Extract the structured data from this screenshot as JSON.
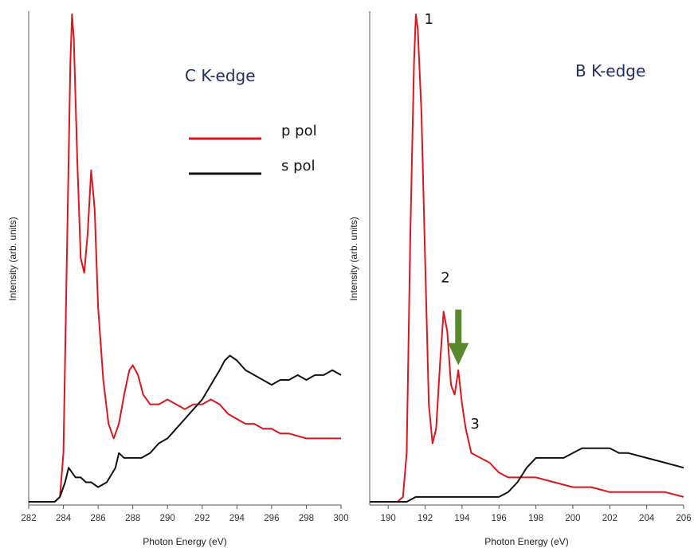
{
  "colors": {
    "p_pol": "#e0141c",
    "s_pol": "#111111",
    "arrow": "#5b8a2e",
    "title": "#1f2f66"
  },
  "chart_data": [
    {
      "type": "line",
      "title": "C K-edge",
      "xlabel": "Photon Energy (eV)",
      "ylabel": "Intensity (arb. units)",
      "xlim": [
        282,
        300
      ],
      "ylim": [
        0,
        1
      ],
      "x_ticks": [
        "282",
        "284",
        "286",
        "288",
        "290",
        "292",
        "294",
        "296",
        "298",
        "300"
      ],
      "legend": [
        "p pol",
        "s pol"
      ],
      "legend_placement": "upper-right",
      "grid": false,
      "series": [
        {
          "name": "p pol",
          "color": "#e0141c",
          "points": [
            [
              282,
              0.0
            ],
            [
              283.5,
              0.0
            ],
            [
              283.8,
              0.01
            ],
            [
              284.0,
              0.1
            ],
            [
              284.2,
              0.5
            ],
            [
              284.4,
              0.9
            ],
            [
              284.5,
              1.0
            ],
            [
              284.6,
              0.95
            ],
            [
              284.8,
              0.7
            ],
            [
              285.0,
              0.5
            ],
            [
              285.2,
              0.47
            ],
            [
              285.4,
              0.55
            ],
            [
              285.6,
              0.68
            ],
            [
              285.8,
              0.6
            ],
            [
              286.0,
              0.4
            ],
            [
              286.3,
              0.25
            ],
            [
              286.6,
              0.16
            ],
            [
              286.9,
              0.13
            ],
            [
              287.2,
              0.16
            ],
            [
              287.5,
              0.22
            ],
            [
              287.8,
              0.27
            ],
            [
              288.0,
              0.28
            ],
            [
              288.3,
              0.26
            ],
            [
              288.6,
              0.22
            ],
            [
              289.0,
              0.2
            ],
            [
              289.5,
              0.2
            ],
            [
              290.0,
              0.21
            ],
            [
              290.5,
              0.2
            ],
            [
              291.0,
              0.19
            ],
            [
              291.5,
              0.2
            ],
            [
              292.0,
              0.2
            ],
            [
              292.5,
              0.21
            ],
            [
              293.0,
              0.2
            ],
            [
              293.5,
              0.18
            ],
            [
              294.0,
              0.17
            ],
            [
              294.5,
              0.16
            ],
            [
              295.0,
              0.16
            ],
            [
              295.5,
              0.15
            ],
            [
              296.0,
              0.15
            ],
            [
              296.5,
              0.14
            ],
            [
              297.0,
              0.14
            ],
            [
              298.0,
              0.13
            ],
            [
              299.0,
              0.13
            ],
            [
              300.0,
              0.13
            ]
          ]
        },
        {
          "name": "s pol",
          "color": "#111111",
          "points": [
            [
              282,
              0.0
            ],
            [
              283.5,
              0.0
            ],
            [
              283.8,
              0.01
            ],
            [
              284.1,
              0.04
            ],
            [
              284.3,
              0.07
            ],
            [
              284.5,
              0.06
            ],
            [
              284.7,
              0.05
            ],
            [
              285.0,
              0.05
            ],
            [
              285.3,
              0.04
            ],
            [
              285.6,
              0.04
            ],
            [
              286.0,
              0.03
            ],
            [
              286.5,
              0.04
            ],
            [
              287.0,
              0.07
            ],
            [
              287.2,
              0.1
            ],
            [
              287.5,
              0.09
            ],
            [
              288.0,
              0.09
            ],
            [
              288.5,
              0.09
            ],
            [
              289.0,
              0.1
            ],
            [
              289.5,
              0.12
            ],
            [
              290.0,
              0.13
            ],
            [
              290.5,
              0.15
            ],
            [
              291.0,
              0.17
            ],
            [
              291.5,
              0.19
            ],
            [
              292.0,
              0.21
            ],
            [
              292.5,
              0.24
            ],
            [
              293.0,
              0.27
            ],
            [
              293.3,
              0.29
            ],
            [
              293.6,
              0.3
            ],
            [
              294.0,
              0.29
            ],
            [
              294.5,
              0.27
            ],
            [
              295.0,
              0.26
            ],
            [
              295.5,
              0.25
            ],
            [
              296.0,
              0.24
            ],
            [
              296.5,
              0.25
            ],
            [
              297.0,
              0.25
            ],
            [
              297.5,
              0.26
            ],
            [
              298.0,
              0.25
            ],
            [
              298.5,
              0.26
            ],
            [
              299.0,
              0.26
            ],
            [
              299.5,
              0.27
            ],
            [
              300.0,
              0.26
            ]
          ]
        }
      ]
    },
    {
      "type": "line",
      "title": "B K-edge",
      "xlabel": "Photon Energy (eV)",
      "ylabel": "Intensity (arb. units)",
      "xlim": [
        189,
        206
      ],
      "ylim": [
        0,
        1
      ],
      "x_ticks": [
        "190",
        "192",
        "194",
        "196",
        "198",
        "200",
        "202",
        "204",
        "206"
      ],
      "grid": false,
      "annotations": [
        {
          "text": "1",
          "x": 192.2,
          "y": 0.98
        },
        {
          "text": "2",
          "x": 193.1,
          "y": 0.45
        },
        {
          "text": "3",
          "x": 194.7,
          "y": 0.15
        },
        {
          "text": "",
          "type": "arrow",
          "x": 193.8,
          "y": 0.28,
          "color": "#5b8a2e"
        }
      ],
      "series": [
        {
          "name": "p pol",
          "color": "#e0141c",
          "points": [
            [
              189,
              0.0
            ],
            [
              190.0,
              0.0
            ],
            [
              190.5,
              0.0
            ],
            [
              190.8,
              0.01
            ],
            [
              191.0,
              0.1
            ],
            [
              191.2,
              0.55
            ],
            [
              191.4,
              0.9
            ],
            [
              191.5,
              1.0
            ],
            [
              191.6,
              0.97
            ],
            [
              191.8,
              0.8
            ],
            [
              192.0,
              0.5
            ],
            [
              192.2,
              0.2
            ],
            [
              192.4,
              0.12
            ],
            [
              192.6,
              0.15
            ],
            [
              192.8,
              0.28
            ],
            [
              193.0,
              0.39
            ],
            [
              193.2,
              0.35
            ],
            [
              193.4,
              0.24
            ],
            [
              193.6,
              0.22
            ],
            [
              193.8,
              0.27
            ],
            [
              194.0,
              0.2
            ],
            [
              194.2,
              0.15
            ],
            [
              194.5,
              0.1
            ],
            [
              195.0,
              0.09
            ],
            [
              195.5,
              0.08
            ],
            [
              196.0,
              0.06
            ],
            [
              196.5,
              0.05
            ],
            [
              197.0,
              0.05
            ],
            [
              197.5,
              0.05
            ],
            [
              198.0,
              0.05
            ],
            [
              199.0,
              0.04
            ],
            [
              200.0,
              0.03
            ],
            [
              201.0,
              0.03
            ],
            [
              202.0,
              0.02
            ],
            [
              203.0,
              0.02
            ],
            [
              204.0,
              0.02
            ],
            [
              205.0,
              0.02
            ],
            [
              206.0,
              0.01
            ]
          ]
        },
        {
          "name": "s pol",
          "color": "#111111",
          "points": [
            [
              189,
              0.0
            ],
            [
              190.0,
              0.0
            ],
            [
              190.5,
              0.0
            ],
            [
              191.0,
              0.0
            ],
            [
              191.5,
              0.01
            ],
            [
              192.0,
              0.01
            ],
            [
              192.5,
              0.01
            ],
            [
              193.0,
              0.01
            ],
            [
              194.0,
              0.01
            ],
            [
              195.0,
              0.01
            ],
            [
              196.0,
              0.01
            ],
            [
              196.5,
              0.02
            ],
            [
              197.0,
              0.04
            ],
            [
              197.5,
              0.07
            ],
            [
              198.0,
              0.09
            ],
            [
              198.5,
              0.09
            ],
            [
              199.0,
              0.09
            ],
            [
              199.5,
              0.09
            ],
            [
              200.0,
              0.1
            ],
            [
              200.5,
              0.11
            ],
            [
              201.0,
              0.11
            ],
            [
              201.5,
              0.11
            ],
            [
              202.0,
              0.11
            ],
            [
              202.5,
              0.1
            ],
            [
              203.0,
              0.1
            ],
            [
              204.0,
              0.09
            ],
            [
              205.0,
              0.08
            ],
            [
              206.0,
              0.07
            ]
          ]
        }
      ]
    }
  ]
}
